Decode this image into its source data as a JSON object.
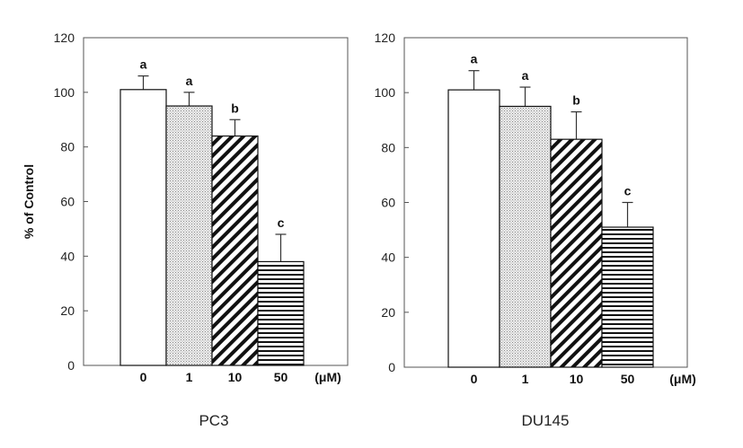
{
  "chart_data": [
    {
      "type": "bar",
      "title": "PC3",
      "ylabel": "% of Control",
      "unit_label": "(μM)",
      "ylim": [
        0,
        120
      ],
      "yticks": [
        "0",
        "20",
        "40",
        "60",
        "80",
        "100",
        "120"
      ],
      "categories": [
        "0",
        "1",
        "10",
        "50"
      ],
      "values": [
        101,
        95,
        84,
        38
      ],
      "errors": [
        5,
        5,
        6,
        10
      ],
      "letters": [
        "a",
        "a",
        "b",
        "c"
      ],
      "fills": [
        "white",
        "dots",
        "diagonal",
        "horizontal"
      ]
    },
    {
      "type": "bar",
      "title": "DU145",
      "ylabel": "",
      "unit_label": "(μM)",
      "ylim": [
        0,
        120
      ],
      "yticks": [
        "0",
        "20",
        "40",
        "60",
        "80",
        "100",
        "120"
      ],
      "categories": [
        "0",
        "1",
        "10",
        "50"
      ],
      "values": [
        101,
        95,
        83,
        51
      ],
      "errors": [
        7,
        7,
        10,
        9
      ],
      "letters": [
        "a",
        "a",
        "b",
        "c"
      ],
      "fills": [
        "white",
        "dots",
        "diagonal",
        "horizontal"
      ]
    }
  ]
}
